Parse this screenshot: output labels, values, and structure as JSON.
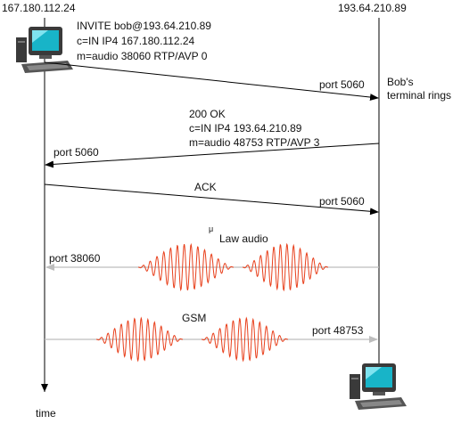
{
  "hosts": {
    "left_ip": "167.180.112.24",
    "right_ip": "193.64.210.89"
  },
  "time_label": "time",
  "messages": {
    "invite": {
      "lines": [
        "INVITE  bob@193.64.210.89",
        "c=IN  IP4  167.180.112.24",
        "m=audio  38060  RTP/AVP  0"
      ],
      "port": "port  5060"
    },
    "ok": {
      "lines": [
        "200  OK",
        "c=IN  IP4  193.64.210.89",
        "m=audio  48753  RTP/AVP  3"
      ],
      "port": "port  5060"
    },
    "ack": {
      "label": "ACK",
      "port": "port  5060"
    }
  },
  "ring_note": [
    "Bob's",
    "terminal rings"
  ],
  "media": {
    "law_audio": {
      "mu": "μ",
      "label": "Law audio",
      "port": "port  38060"
    },
    "gsm": {
      "label": "GSM",
      "port": "port  48753"
    }
  },
  "colors": {
    "lines": "#000000",
    "media_arrow": "#bdbdbd",
    "wave": "#e8401c",
    "monitor_screen": "#18b4c8",
    "computer_body": "#3a3a3a"
  },
  "icons": [
    "computer-icon-left",
    "computer-icon-right"
  ]
}
